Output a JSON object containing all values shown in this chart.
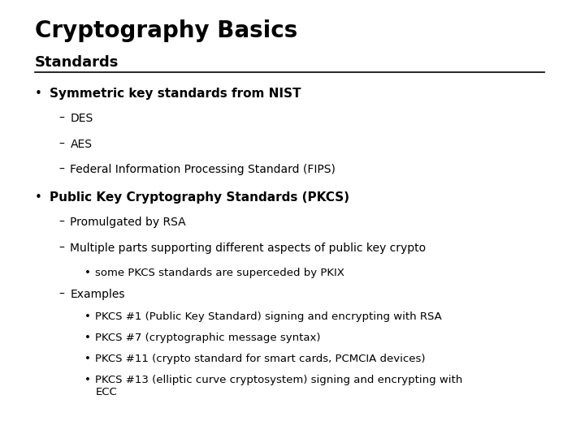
{
  "title": "Cryptography Basics",
  "subtitle": "Standards",
  "bg_color": "#ffffff",
  "title_color": "#000000",
  "subtitle_color": "#000000",
  "text_color": "#000000",
  "line_color": "#000000",
  "bullet1_bold": "Symmetric key standards from NIST",
  "bullet1_subs": [
    "DES",
    "AES",
    "Federal Information Processing Standard (FIPS)"
  ],
  "bullet2_bold": "Public Key Cryptography Standards (PKCS)",
  "bullet2_subs": [
    "Promulgated by RSA",
    "Multiple parts supporting different aspects of public key crypto"
  ],
  "bullet2_sub_sub": [
    "some PKCS standards are superceded by PKIX"
  ],
  "bullet2_examples_label": "Examples",
  "bullet2_examples": [
    "PKCS #1 (Public Key Standard) signing and encrypting with RSA",
    "PKCS #7 (cryptographic message syntax)",
    "PKCS #11 (crypto standard for smart cards, PCMCIA devices)",
    "PKCS #13 (elliptic curve cryptosystem) signing and encrypting with\nECC"
  ],
  "title_fontsize": 20,
  "subtitle_fontsize": 13,
  "bullet_fontsize": 11,
  "sub_fontsize": 10,
  "subsub_fontsize": 9.5
}
